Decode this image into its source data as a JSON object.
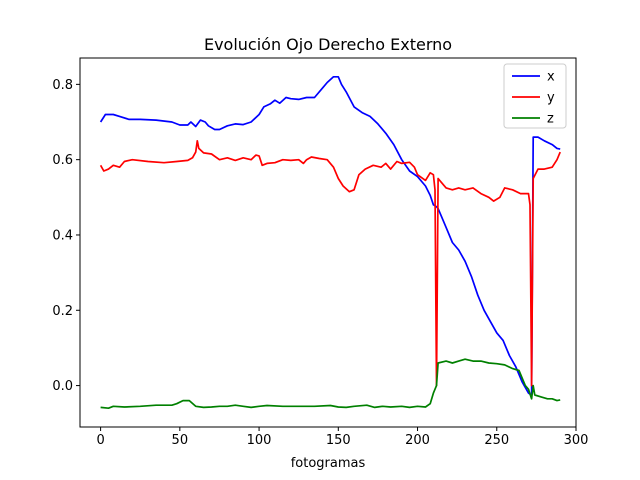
{
  "chart_data": {
    "type": "line",
    "title": "Evolución Ojo Derecho Externo",
    "xlabel": "fotogramas",
    "ylabel": "",
    "xlim": [
      -13,
      300
    ],
    "ylim": [
      -0.11,
      0.87
    ],
    "x_ticks": [
      {
        "value": 0,
        "label": "0"
      },
      {
        "value": 50,
        "label": "50"
      },
      {
        "value": 100,
        "label": "100"
      },
      {
        "value": 150,
        "label": "150"
      },
      {
        "value": 200,
        "label": "200"
      },
      {
        "value": 250,
        "label": "250"
      },
      {
        "value": 300,
        "label": "300"
      }
    ],
    "y_ticks": [
      {
        "value": 0.0,
        "label": "0.0"
      },
      {
        "value": 0.2,
        "label": "0.2"
      },
      {
        "value": 0.4,
        "label": "0.4"
      },
      {
        "value": 0.6,
        "label": "0.6"
      },
      {
        "value": 0.8,
        "label": "0.8"
      }
    ],
    "grid": false,
    "legend_position": "top-right",
    "series": [
      {
        "name": "x",
        "color": "#0000ff",
        "points": [
          [
            0,
            0.7
          ],
          [
            3,
            0.72
          ],
          [
            8,
            0.72
          ],
          [
            12,
            0.715
          ],
          [
            18,
            0.707
          ],
          [
            25,
            0.707
          ],
          [
            35,
            0.705
          ],
          [
            45,
            0.7
          ],
          [
            50,
            0.692
          ],
          [
            55,
            0.692
          ],
          [
            57,
            0.7
          ],
          [
            60,
            0.688
          ],
          [
            63,
            0.705
          ],
          [
            66,
            0.7
          ],
          [
            68,
            0.69
          ],
          [
            72,
            0.68
          ],
          [
            75,
            0.68
          ],
          [
            80,
            0.69
          ],
          [
            85,
            0.695
          ],
          [
            90,
            0.693
          ],
          [
            95,
            0.7
          ],
          [
            100,
            0.72
          ],
          [
            103,
            0.74
          ],
          [
            107,
            0.748
          ],
          [
            110,
            0.758
          ],
          [
            113,
            0.75
          ],
          [
            117,
            0.765
          ],
          [
            120,
            0.762
          ],
          [
            125,
            0.76
          ],
          [
            130,
            0.765
          ],
          [
            135,
            0.765
          ],
          [
            140,
            0.79
          ],
          [
            143,
            0.805
          ],
          [
            147,
            0.82
          ],
          [
            150,
            0.82
          ],
          [
            152,
            0.8
          ],
          [
            155,
            0.78
          ],
          [
            160,
            0.74
          ],
          [
            165,
            0.725
          ],
          [
            170,
            0.715
          ],
          [
            175,
            0.695
          ],
          [
            180,
            0.67
          ],
          [
            185,
            0.64
          ],
          [
            190,
            0.6
          ],
          [
            195,
            0.57
          ],
          [
            200,
            0.555
          ],
          [
            205,
            0.53
          ],
          [
            208,
            0.505
          ],
          [
            210,
            0.48
          ],
          [
            212,
            0.475
          ],
          [
            213,
            0.47
          ],
          [
            215,
            0.45
          ],
          [
            218,
            0.42
          ],
          [
            222,
            0.38
          ],
          [
            226,
            0.36
          ],
          [
            230,
            0.33
          ],
          [
            234,
            0.29
          ],
          [
            238,
            0.24
          ],
          [
            242,
            0.2
          ],
          [
            246,
            0.17
          ],
          [
            250,
            0.14
          ],
          [
            254,
            0.12
          ],
          [
            258,
            0.08
          ],
          [
            262,
            0.05
          ],
          [
            266,
            0.01
          ],
          [
            270,
            -0.02
          ],
          [
            272,
            -0.025
          ],
          [
            273,
            0.66
          ],
          [
            276,
            0.66
          ],
          [
            280,
            0.65
          ],
          [
            285,
            0.64
          ],
          [
            288,
            0.63
          ],
          [
            290,
            0.628
          ]
        ]
      },
      {
        "name": "y",
        "color": "#ff0000",
        "points": [
          [
            0,
            0.585
          ],
          [
            2,
            0.57
          ],
          [
            5,
            0.575
          ],
          [
            8,
            0.585
          ],
          [
            12,
            0.58
          ],
          [
            15,
            0.595
          ],
          [
            20,
            0.6
          ],
          [
            30,
            0.595
          ],
          [
            40,
            0.592
          ],
          [
            48,
            0.595
          ],
          [
            55,
            0.598
          ],
          [
            58,
            0.605
          ],
          [
            60,
            0.62
          ],
          [
            61,
            0.65
          ],
          [
            62,
            0.63
          ],
          [
            65,
            0.618
          ],
          [
            70,
            0.615
          ],
          [
            75,
            0.6
          ],
          [
            80,
            0.605
          ],
          [
            85,
            0.598
          ],
          [
            90,
            0.605
          ],
          [
            95,
            0.6
          ],
          [
            98,
            0.612
          ],
          [
            100,
            0.61
          ],
          [
            102,
            0.585
          ],
          [
            105,
            0.59
          ],
          [
            110,
            0.592
          ],
          [
            115,
            0.6
          ],
          [
            120,
            0.598
          ],
          [
            125,
            0.6
          ],
          [
            128,
            0.59
          ],
          [
            130,
            0.6
          ],
          [
            133,
            0.607
          ],
          [
            138,
            0.603
          ],
          [
            143,
            0.6
          ],
          [
            147,
            0.58
          ],
          [
            150,
            0.55
          ],
          [
            153,
            0.53
          ],
          [
            157,
            0.515
          ],
          [
            160,
            0.52
          ],
          [
            163,
            0.56
          ],
          [
            167,
            0.575
          ],
          [
            172,
            0.585
          ],
          [
            177,
            0.58
          ],
          [
            180,
            0.59
          ],
          [
            183,
            0.575
          ],
          [
            187,
            0.595
          ],
          [
            190,
            0.59
          ],
          [
            195,
            0.593
          ],
          [
            198,
            0.58
          ],
          [
            200,
            0.56
          ],
          [
            205,
            0.545
          ],
          [
            208,
            0.565
          ],
          [
            210,
            0.56
          ],
          [
            211,
            0.52
          ],
          [
            212,
            0.0
          ],
          [
            213,
            0.55
          ],
          [
            215,
            0.54
          ],
          [
            218,
            0.525
          ],
          [
            222,
            0.52
          ],
          [
            226,
            0.525
          ],
          [
            230,
            0.52
          ],
          [
            235,
            0.525
          ],
          [
            240,
            0.51
          ],
          [
            245,
            0.5
          ],
          [
            248,
            0.49
          ],
          [
            252,
            0.5
          ],
          [
            255,
            0.525
          ],
          [
            260,
            0.52
          ],
          [
            265,
            0.51
          ],
          [
            270,
            0.51
          ],
          [
            271,
            0.48
          ],
          [
            272,
            0.0
          ],
          [
            273,
            0.55
          ],
          [
            276,
            0.575
          ],
          [
            280,
            0.575
          ],
          [
            285,
            0.58
          ],
          [
            288,
            0.6
          ],
          [
            290,
            0.62
          ]
        ]
      },
      {
        "name": "z",
        "color": "#008000",
        "points": [
          [
            0,
            -0.058
          ],
          [
            5,
            -0.06
          ],
          [
            8,
            -0.055
          ],
          [
            15,
            -0.057
          ],
          [
            25,
            -0.055
          ],
          [
            35,
            -0.052
          ],
          [
            45,
            -0.052
          ],
          [
            48,
            -0.048
          ],
          [
            52,
            -0.04
          ],
          [
            56,
            -0.04
          ],
          [
            60,
            -0.055
          ],
          [
            65,
            -0.058
          ],
          [
            70,
            -0.057
          ],
          [
            75,
            -0.055
          ],
          [
            80,
            -0.055
          ],
          [
            85,
            -0.052
          ],
          [
            90,
            -0.055
          ],
          [
            95,
            -0.058
          ],
          [
            100,
            -0.055
          ],
          [
            105,
            -0.053
          ],
          [
            115,
            -0.055
          ],
          [
            125,
            -0.055
          ],
          [
            135,
            -0.055
          ],
          [
            145,
            -0.053
          ],
          [
            150,
            -0.057
          ],
          [
            155,
            -0.058
          ],
          [
            160,
            -0.055
          ],
          [
            168,
            -0.052
          ],
          [
            173,
            -0.058
          ],
          [
            178,
            -0.055
          ],
          [
            183,
            -0.057
          ],
          [
            190,
            -0.055
          ],
          [
            195,
            -0.058
          ],
          [
            200,
            -0.055
          ],
          [
            205,
            -0.057
          ],
          [
            208,
            -0.048
          ],
          [
            210,
            -0.02
          ],
          [
            212,
            0.0
          ],
          [
            213,
            0.06
          ],
          [
            218,
            0.065
          ],
          [
            222,
            0.06
          ],
          [
            226,
            0.065
          ],
          [
            230,
            0.07
          ],
          [
            235,
            0.065
          ],
          [
            240,
            0.065
          ],
          [
            245,
            0.06
          ],
          [
            250,
            0.058
          ],
          [
            255,
            0.055
          ],
          [
            260,
            0.045
          ],
          [
            264,
            0.04
          ],
          [
            268,
            0.0
          ],
          [
            270,
            -0.01
          ],
          [
            272,
            -0.035
          ],
          [
            273,
            0.0
          ],
          [
            274,
            -0.025
          ],
          [
            278,
            -0.03
          ],
          [
            282,
            -0.035
          ],
          [
            285,
            -0.035
          ],
          [
            288,
            -0.04
          ],
          [
            290,
            -0.038
          ]
        ]
      }
    ]
  }
}
